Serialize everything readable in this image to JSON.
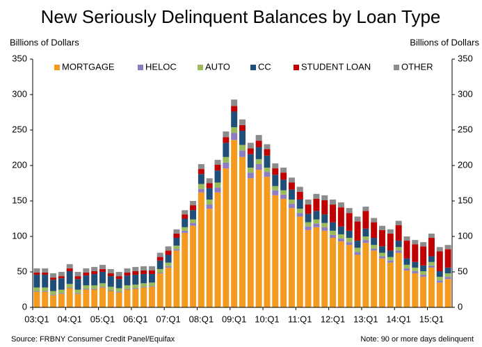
{
  "chart_data": {
    "type": "stacked-bar",
    "title": "New Seriously Delinquent Balances by Loan Type",
    "y_label": "Billions of Dollars",
    "y2_label": "Billions of Dollars",
    "source": "Source: FRBNY Consumer Credit Panel/Equifax",
    "note": "Note:  90 or more days delinquent",
    "categories": [
      "03:Q1",
      null,
      null,
      null,
      "04:Q1",
      null,
      null,
      null,
      "05:Q1",
      null,
      null,
      null,
      "06:Q1",
      null,
      null,
      null,
      "07:Q1",
      null,
      null,
      null,
      "08:Q1",
      null,
      null,
      null,
      "09:Q1",
      null,
      null,
      null,
      "10:Q1",
      null,
      null,
      null,
      "11:Q1",
      null,
      null,
      null,
      "12:Q1",
      null,
      null,
      null,
      "13:Q1",
      null,
      null,
      null,
      "14:Q1",
      null,
      null,
      null,
      "15:Q1",
      null,
      null
    ],
    "series": [
      {
        "name": "MORTGAGE",
        "color": "#f39a1f",
        "values": [
          22,
          22,
          17,
          19,
          27,
          19,
          25,
          25,
          28,
          23,
          21,
          25,
          26,
          28,
          29,
          48,
          56,
          80,
          105,
          115,
          162,
          139,
          162,
          196,
          236,
          212,
          182,
          194,
          184,
          158,
          153,
          140,
          128,
          109,
          113,
          108,
          98,
          93,
          88,
          74,
          91,
          80,
          69,
          63,
          77,
          52,
          48,
          43,
          56,
          35,
          40
        ]
      },
      {
        "name": "HELOC",
        "color": "#8e7cc3",
        "values": [
          1,
          1,
          1,
          1,
          1,
          1,
          1,
          1,
          1,
          1,
          1,
          1,
          1,
          1,
          1,
          1,
          2,
          2,
          3,
          4,
          5,
          6,
          7,
          8,
          10,
          9,
          8,
          8,
          7,
          7,
          6,
          6,
          5,
          5,
          5,
          5,
          4,
          4,
          4,
          4,
          4,
          3,
          3,
          3,
          3,
          3,
          3,
          3,
          3,
          3,
          3
        ]
      },
      {
        "name": "AUTO",
        "color": "#9bbb59",
        "values": [
          5,
          5,
          5,
          5,
          5,
          5,
          5,
          5,
          5,
          5,
          5,
          5,
          5,
          5,
          5,
          5,
          5,
          5,
          5,
          5,
          7,
          7,
          7,
          8,
          8,
          8,
          7,
          7,
          6,
          6,
          6,
          6,
          6,
          6,
          6,
          6,
          6,
          6,
          6,
          6,
          5,
          5,
          5,
          5,
          5,
          5,
          5,
          5,
          5,
          5,
          5
        ]
      },
      {
        "name": "CC",
        "color": "#1f4e79",
        "values": [
          18,
          18,
          16,
          16,
          18,
          15,
          14,
          16,
          16,
          15,
          13,
          14,
          14,
          13,
          12,
          12,
          11,
          11,
          12,
          13,
          14,
          16,
          17,
          20,
          22,
          20,
          19,
          17,
          17,
          16,
          15,
          14,
          13,
          12,
          12,
          12,
          12,
          11,
          10,
          10,
          11,
          10,
          9,
          9,
          9,
          9,
          8,
          8,
          8,
          8,
          8
        ]
      },
      {
        "name": "STUDENT LOAN",
        "color": "#c00000",
        "values": [
          3,
          3,
          3,
          3,
          4,
          4,
          4,
          4,
          4,
          4,
          4,
          4,
          5,
          5,
          5,
          5,
          6,
          6,
          6,
          7,
          7,
          7,
          8,
          8,
          8,
          8,
          8,
          9,
          9,
          9,
          10,
          10,
          11,
          13,
          17,
          20,
          25,
          27,
          25,
          27,
          25,
          22,
          23,
          24,
          22,
          25,
          25,
          27,
          26,
          28,
          26
        ]
      },
      {
        "name": "OTHER",
        "color": "#8c8c8c",
        "values": [
          6,
          6,
          6,
          6,
          6,
          6,
          6,
          6,
          6,
          6,
          6,
          6,
          6,
          6,
          6,
          6,
          6,
          6,
          6,
          6,
          7,
          7,
          7,
          8,
          9,
          8,
          8,
          8,
          7,
          7,
          7,
          7,
          7,
          7,
          7,
          7,
          7,
          7,
          7,
          7,
          6,
          6,
          6,
          6,
          6,
          6,
          6,
          6,
          6,
          6,
          6
        ]
      }
    ],
    "ylim": [
      0,
      350
    ],
    "yticks": [
      0,
      50,
      100,
      150,
      200,
      250,
      300,
      350
    ],
    "y2lim": [
      0,
      350
    ],
    "y2ticks": [
      0,
      50,
      100,
      150,
      200,
      250,
      300,
      350
    ],
    "legend": "top"
  }
}
